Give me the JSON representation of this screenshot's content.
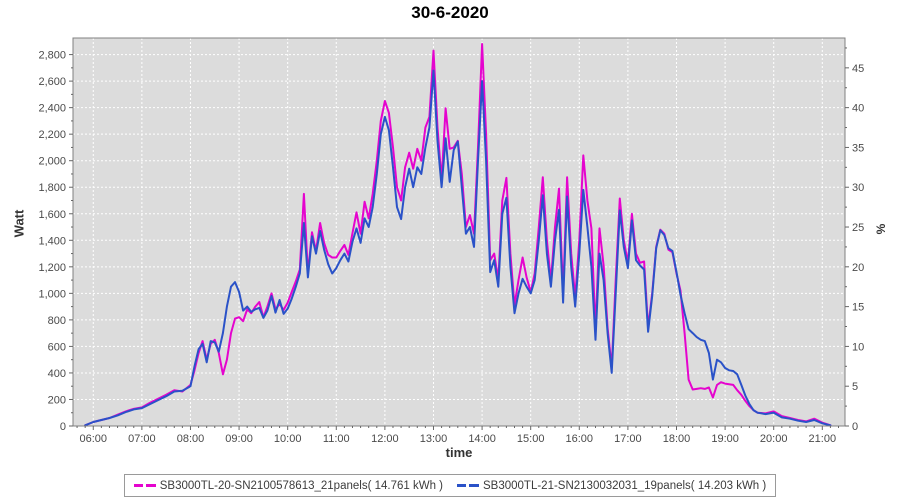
{
  "title": "30-6-2020",
  "colors": {
    "series1": "#e504ce",
    "series2": "#2a52c8",
    "plot_bg": "#dcdcdc",
    "grid": "#ffffff",
    "plot_border": "#808080",
    "tick": "#666666",
    "tick_label": "#4a4a4a"
  },
  "axes": {
    "x_label": "time",
    "y_left_label": "Watt",
    "y_right_label": "%",
    "x_ticks": [
      "06:00",
      "07:00",
      "08:00",
      "09:00",
      "10:00",
      "11:00",
      "12:00",
      "13:00",
      "14:00",
      "15:00",
      "16:00",
      "17:00",
      "18:00",
      "19:00",
      "20:00",
      "21:00"
    ],
    "y_left_ticks": [
      "0",
      "200",
      "400",
      "600",
      "800",
      "1,000",
      "1,200",
      "1,400",
      "1,600",
      "1,800",
      "2,000",
      "2,200",
      "2,400",
      "2,600",
      "2,800"
    ],
    "y_right_ticks": [
      "0",
      "5",
      "10",
      "15",
      "20",
      "25",
      "30",
      "35",
      "40",
      "45"
    ]
  },
  "legend": [
    {
      "label": "SB3000TL-20-SN2100578613_21panels( 14.761 kWh )"
    },
    {
      "label": "SB3000TL-21-SN2130032031_19panels( 14.203 kWh )"
    }
  ],
  "chart_data": {
    "type": "line",
    "title": "30-6-2020",
    "xlabel": "time",
    "ylabel_left": "Watt",
    "ylabel_right": "%",
    "x_range_hours": [
      5.583,
      21.467
    ],
    "ylim_left": [
      0,
      2925
    ],
    "ylim_right": [
      0,
      48.75
    ],
    "grid": true,
    "legend_position": "bottom",
    "x": [
      "05:50",
      "06:00",
      "06:10",
      "06:20",
      "06:30",
      "06:40",
      "06:50",
      "07:00",
      "07:10",
      "07:20",
      "07:30",
      "07:40",
      "07:50",
      "08:00",
      "08:05",
      "08:10",
      "08:15",
      "08:20",
      "08:25",
      "08:30",
      "08:35",
      "08:40",
      "08:45",
      "08:50",
      "08:55",
      "09:00",
      "09:05",
      "09:10",
      "09:15",
      "09:20",
      "09:25",
      "09:30",
      "09:35",
      "09:40",
      "09:45",
      "09:50",
      "09:55",
      "10:00",
      "10:05",
      "10:10",
      "10:15",
      "10:20",
      "10:25",
      "10:30",
      "10:35",
      "10:40",
      "10:45",
      "10:50",
      "10:55",
      "11:00",
      "11:05",
      "11:10",
      "11:15",
      "11:20",
      "11:25",
      "11:30",
      "11:35",
      "11:40",
      "11:45",
      "11:50",
      "11:55",
      "12:00",
      "12:05",
      "12:10",
      "12:15",
      "12:20",
      "12:25",
      "12:30",
      "12:35",
      "12:40",
      "12:45",
      "12:50",
      "12:55",
      "13:00",
      "13:05",
      "13:10",
      "13:15",
      "13:20",
      "13:25",
      "13:30",
      "13:35",
      "13:40",
      "13:45",
      "13:50",
      "13:55",
      "14:00",
      "14:05",
      "14:10",
      "14:15",
      "14:20",
      "14:25",
      "14:30",
      "14:35",
      "14:40",
      "14:45",
      "14:50",
      "14:55",
      "15:00",
      "15:05",
      "15:10",
      "15:15",
      "15:20",
      "15:25",
      "15:30",
      "15:35",
      "15:40",
      "15:45",
      "15:50",
      "15:55",
      "16:00",
      "16:05",
      "16:10",
      "16:15",
      "16:20",
      "16:25",
      "16:30",
      "16:35",
      "16:40",
      "16:45",
      "16:50",
      "16:55",
      "17:00",
      "17:05",
      "17:10",
      "17:15",
      "17:20",
      "17:25",
      "17:30",
      "17:35",
      "17:40",
      "17:45",
      "17:50",
      "17:55",
      "18:00",
      "18:05",
      "18:10",
      "18:15",
      "18:20",
      "18:25",
      "18:30",
      "18:35",
      "18:40",
      "18:45",
      "18:50",
      "18:55",
      "19:00",
      "19:05",
      "19:10",
      "19:15",
      "19:20",
      "19:25",
      "19:30",
      "19:35",
      "19:40",
      "19:50",
      "20:00",
      "20:10",
      "20:20",
      "20:30",
      "20:40",
      "20:50",
      "21:00",
      "21:05",
      "21:10"
    ],
    "series": [
      {
        "name": "SB3000TL-20-SN2100578613_21panels( 14.761 kWh )",
        "color": "#e504ce",
        "values": [
          5,
          30,
          45,
          60,
          85,
          110,
          130,
          140,
          175,
          205,
          235,
          270,
          260,
          310,
          420,
          550,
          640,
          500,
          620,
          650,
          550,
          390,
          500,
          700,
          810,
          820,
          790,
          880,
          850,
          900,
          935,
          820,
          900,
          1000,
          880,
          920,
          875,
          930,
          1010,
          1090,
          1180,
          1750,
          1150,
          1460,
          1320,
          1530,
          1380,
          1290,
          1270,
          1270,
          1320,
          1365,
          1290,
          1455,
          1610,
          1450,
          1690,
          1565,
          1750,
          2000,
          2300,
          2450,
          2360,
          2100,
          1800,
          1700,
          1950,
          2060,
          1940,
          2090,
          2000,
          2250,
          2330,
          2830,
          2250,
          1850,
          2395,
          2090,
          2100,
          2150,
          1900,
          1500,
          1590,
          1450,
          2100,
          2880,
          2200,
          1250,
          1300,
          1100,
          1700,
          1870,
          1300,
          910,
          1100,
          1270,
          1120,
          1010,
          1150,
          1500,
          1875,
          1400,
          1090,
          1500,
          1790,
          1000,
          1875,
          1300,
          970,
          1400,
          2040,
          1700,
          1490,
          720,
          1490,
          1210,
          740,
          440,
          1100,
          1715,
          1400,
          1230,
          1600,
          1300,
          1230,
          1240,
          740,
          1000,
          1350,
          1480,
          1450,
          1330,
          1310,
          1150,
          1020,
          700,
          350,
          275,
          280,
          285,
          280,
          290,
          215,
          310,
          330,
          320,
          315,
          310,
          270,
          235,
          190,
          150,
          120,
          100,
          95,
          110,
          75,
          60,
          45,
          35,
          55,
          25,
          15,
          5
        ]
      },
      {
        "name": "SB3000TL-21-SN2130032031_19panels( 14.203 kWh )",
        "color": "#2a52c8",
        "values": [
          5,
          30,
          45,
          60,
          80,
          105,
          125,
          135,
          165,
          195,
          225,
          260,
          265,
          300,
          450,
          580,
          620,
          480,
          640,
          630,
          560,
          700,
          900,
          1050,
          1085,
          1010,
          870,
          900,
          860,
          880,
          890,
          815,
          870,
          980,
          855,
          950,
          845,
          885,
          960,
          1050,
          1150,
          1530,
          1120,
          1430,
          1300,
          1470,
          1330,
          1220,
          1150,
          1190,
          1250,
          1300,
          1240,
          1390,
          1490,
          1380,
          1565,
          1500,
          1650,
          1900,
          2200,
          2330,
          2230,
          1950,
          1650,
          1560,
          1800,
          1940,
          1800,
          1950,
          1900,
          2100,
          2250,
          2680,
          2150,
          1800,
          2170,
          1840,
          2080,
          2145,
          1800,
          1450,
          1500,
          1350,
          2000,
          2600,
          2000,
          1160,
          1250,
          1050,
          1600,
          1720,
          1200,
          850,
          1000,
          1110,
          1050,
          1000,
          1100,
          1400,
          1740,
          1300,
          1050,
          1400,
          1630,
          930,
          1730,
          1200,
          900,
          1300,
          1780,
          1500,
          1200,
          650,
          1300,
          1100,
          700,
          400,
          1000,
          1625,
          1350,
          1190,
          1550,
          1250,
          1210,
          1180,
          710,
          980,
          1340,
          1475,
          1440,
          1340,
          1320,
          1160,
          990,
          850,
          730,
          700,
          670,
          650,
          640,
          550,
          350,
          500,
          480,
          437,
          420,
          415,
          390,
          310,
          230,
          165,
          120,
          100,
          90,
          100,
          65,
          55,
          40,
          30,
          45,
          20,
          12,
          5
        ]
      }
    ]
  }
}
